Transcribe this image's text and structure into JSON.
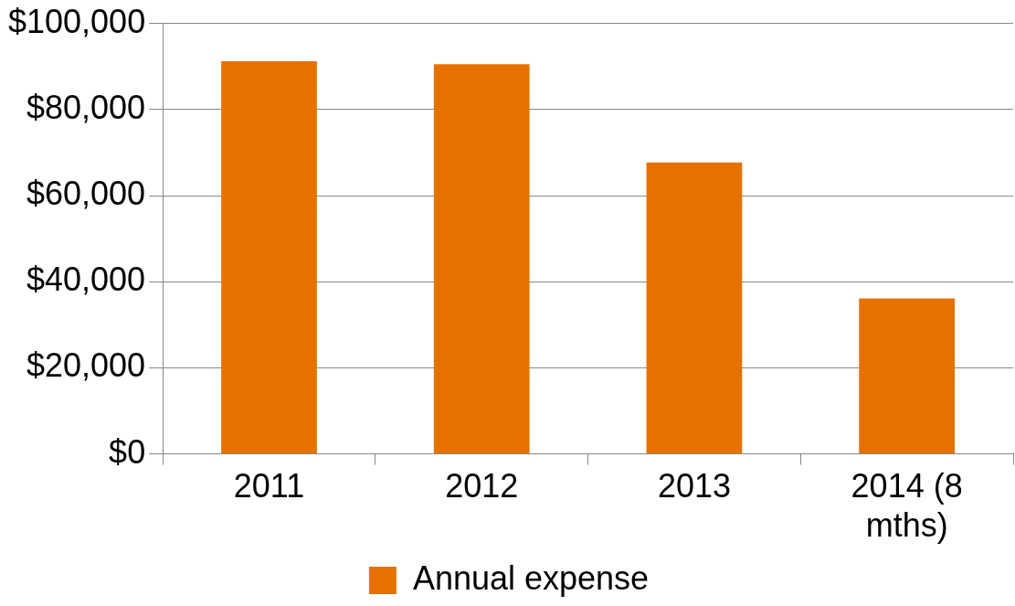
{
  "chart_data": {
    "type": "bar",
    "categories": [
      "2011",
      "2012",
      "2013",
      "2014 (8 mths)"
    ],
    "series": [
      {
        "name": "Annual expense",
        "color": "#e57200",
        "values": [
          91200,
          90500,
          67700,
          36100
        ]
      }
    ],
    "ylim": [
      0,
      100000
    ],
    "yticks": [
      {
        "value": 0,
        "label": "$0"
      },
      {
        "value": 20000,
        "label": "$20,000"
      },
      {
        "value": 40000,
        "label": "$40,000"
      },
      {
        "value": 60000,
        "label": "$60,000"
      },
      {
        "value": 80000,
        "label": "$80,000"
      },
      {
        "value": 100000,
        "label": "$100,000"
      }
    ],
    "grid": "y",
    "legend": "bottom"
  }
}
